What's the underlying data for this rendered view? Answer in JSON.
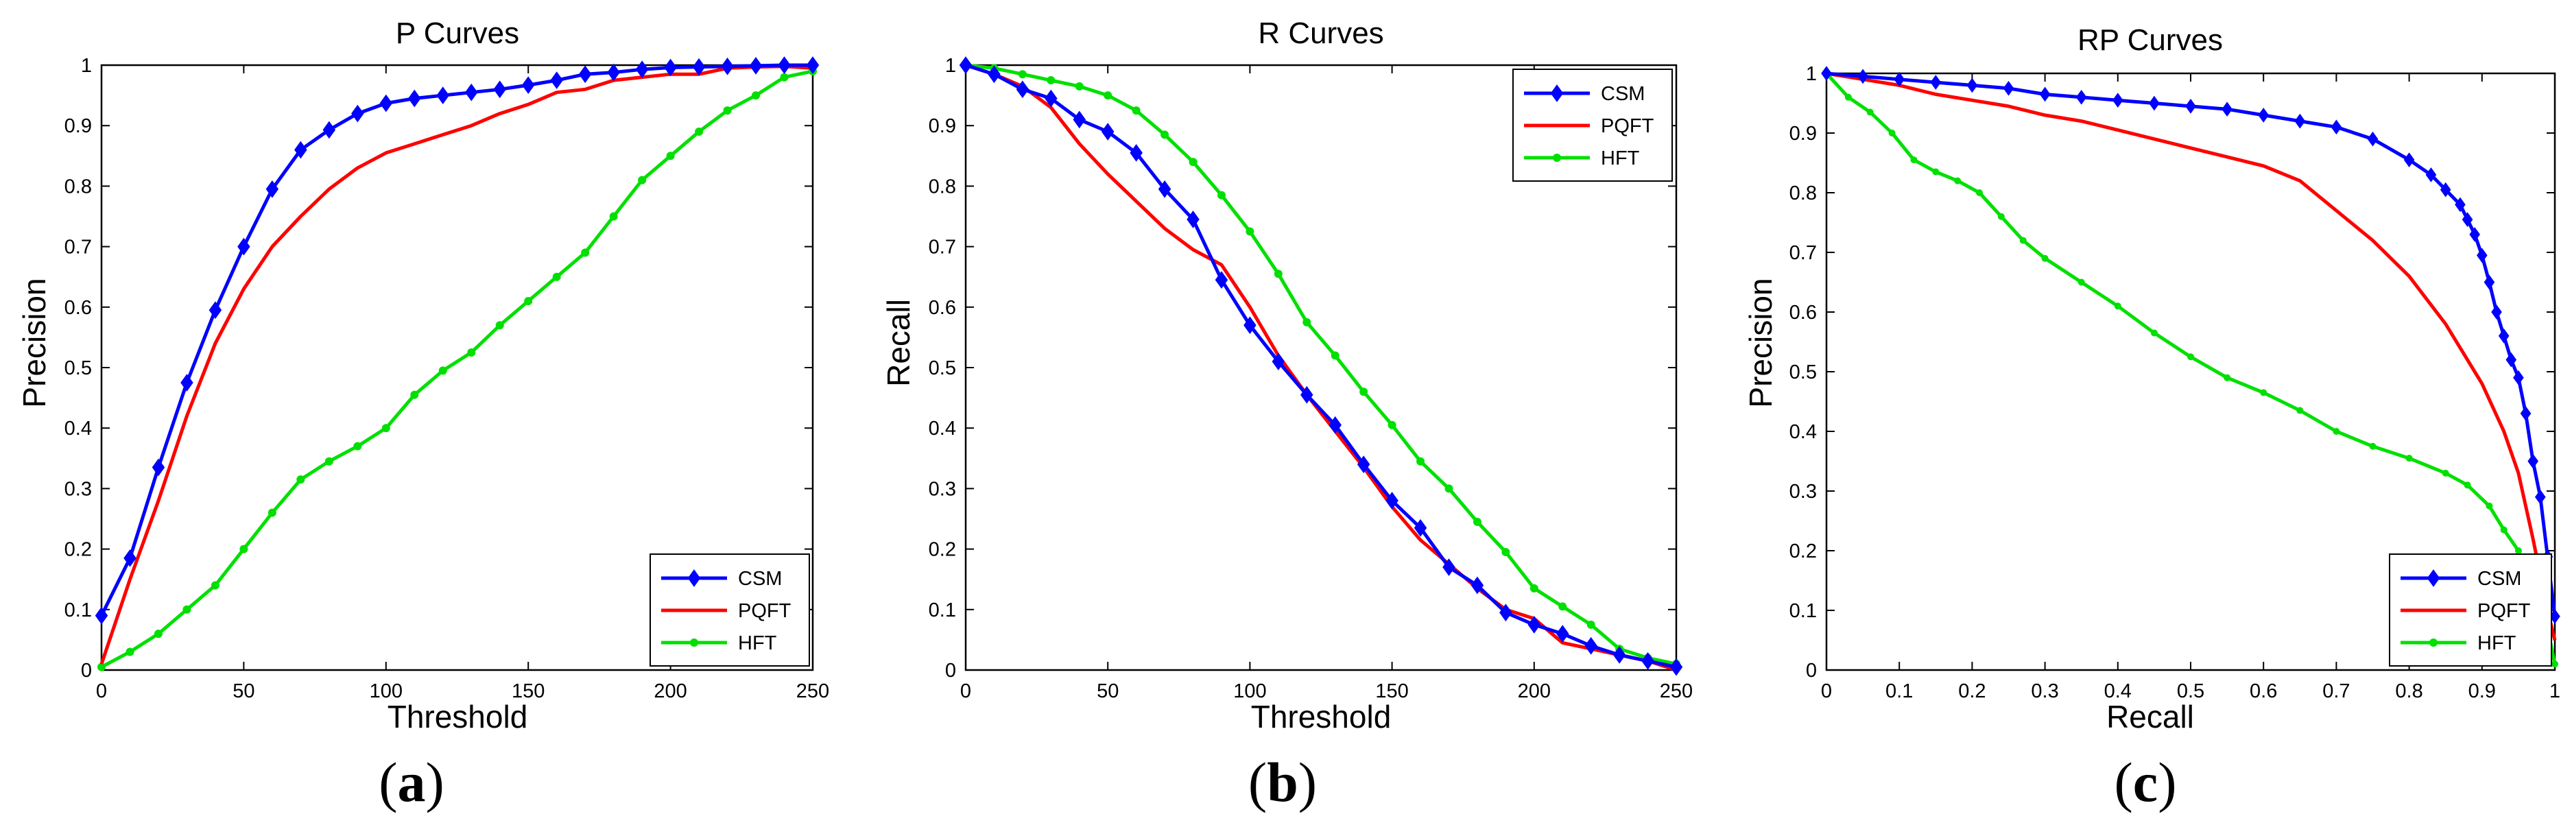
{
  "chart_data": [
    {
      "type": "line",
      "panel_label": "a",
      "title": "P Curves",
      "xlabel": "Threshold",
      "ylabel": "Precision",
      "xlim": [
        0,
        250
      ],
      "ylim": [
        0,
        1
      ],
      "xticks": [
        0,
        50,
        100,
        150,
        200,
        250
      ],
      "yticks": [
        0,
        0.1,
        0.2,
        0.3,
        0.4,
        0.5,
        0.6,
        0.7,
        0.8,
        0.9,
        1
      ],
      "grid": false,
      "legend_position": "bottom-right",
      "series": [
        {
          "name": "CSM",
          "color": "#0000ff",
          "marker": "diamond",
          "x": [
            0,
            10,
            20,
            30,
            40,
            50,
            60,
            70,
            80,
            90,
            100,
            110,
            120,
            130,
            140,
            150,
            160,
            170,
            180,
            190,
            200,
            210,
            220,
            230,
            240,
            250
          ],
          "y": [
            0.09,
            0.185,
            0.335,
            0.475,
            0.595,
            0.7,
            0.795,
            0.86,
            0.893,
            0.92,
            0.937,
            0.945,
            0.95,
            0.955,
            0.96,
            0.967,
            0.975,
            0.985,
            0.988,
            0.993,
            0.996,
            0.997,
            0.998,
            0.999,
            1.0,
            1.0
          ]
        },
        {
          "name": "PQFT",
          "color": "#ff0000",
          "marker": "none",
          "x": [
            0,
            10,
            20,
            30,
            40,
            50,
            60,
            70,
            80,
            90,
            100,
            110,
            120,
            130,
            140,
            150,
            160,
            170,
            180,
            190,
            200,
            210,
            220,
            230,
            240,
            250
          ],
          "y": [
            0.01,
            0.15,
            0.28,
            0.42,
            0.54,
            0.63,
            0.7,
            0.75,
            0.795,
            0.83,
            0.855,
            0.87,
            0.885,
            0.9,
            0.92,
            0.935,
            0.955,
            0.96,
            0.975,
            0.98,
            0.985,
            0.985,
            0.995,
            0.997,
            0.998,
            0.995
          ]
        },
        {
          "name": "HFT",
          "color": "#00e000",
          "marker": "dot",
          "x": [
            0,
            10,
            20,
            30,
            40,
            50,
            60,
            70,
            80,
            90,
            100,
            110,
            120,
            130,
            140,
            150,
            160,
            170,
            180,
            190,
            200,
            210,
            220,
            230,
            240,
            250
          ],
          "y": [
            0.005,
            0.03,
            0.06,
            0.1,
            0.14,
            0.2,
            0.26,
            0.315,
            0.345,
            0.37,
            0.4,
            0.455,
            0.495,
            0.525,
            0.57,
            0.61,
            0.65,
            0.69,
            0.75,
            0.81,
            0.85,
            0.89,
            0.925,
            0.95,
            0.98,
            0.99
          ]
        }
      ]
    },
    {
      "type": "line",
      "panel_label": "b",
      "title": "R Curves",
      "xlabel": "Threshold",
      "ylabel": "Recall",
      "xlim": [
        0,
        250
      ],
      "ylim": [
        0,
        1
      ],
      "xticks": [
        0,
        50,
        100,
        150,
        200,
        250
      ],
      "yticks": [
        0,
        0.1,
        0.2,
        0.3,
        0.4,
        0.5,
        0.6,
        0.7,
        0.8,
        0.9,
        1
      ],
      "grid": false,
      "legend_position": "top-right",
      "series": [
        {
          "name": "CSM",
          "color": "#0000ff",
          "marker": "diamond",
          "x": [
            0,
            10,
            20,
            30,
            40,
            50,
            60,
            70,
            80,
            90,
            100,
            110,
            120,
            130,
            140,
            150,
            160,
            170,
            180,
            190,
            200,
            210,
            220,
            230,
            240,
            250
          ],
          "y": [
            1.0,
            0.985,
            0.96,
            0.945,
            0.91,
            0.89,
            0.855,
            0.795,
            0.745,
            0.645,
            0.57,
            0.51,
            0.455,
            0.405,
            0.34,
            0.28,
            0.235,
            0.17,
            0.14,
            0.095,
            0.075,
            0.06,
            0.04,
            0.025,
            0.015,
            0.005
          ]
        },
        {
          "name": "PQFT",
          "color": "#ff0000",
          "marker": "none",
          "x": [
            0,
            10,
            20,
            30,
            40,
            50,
            60,
            70,
            80,
            90,
            100,
            110,
            120,
            130,
            140,
            150,
            160,
            170,
            180,
            190,
            200,
            210,
            220,
            230,
            240,
            250
          ],
          "y": [
            1.0,
            0.985,
            0.965,
            0.93,
            0.87,
            0.82,
            0.775,
            0.73,
            0.695,
            0.67,
            0.6,
            0.52,
            0.455,
            0.395,
            0.335,
            0.27,
            0.215,
            0.175,
            0.135,
            0.1,
            0.085,
            0.045,
            0.035,
            0.025,
            0.015,
            0.0
          ]
        },
        {
          "name": "HFT",
          "color": "#00e000",
          "marker": "dot",
          "x": [
            0,
            10,
            20,
            30,
            40,
            50,
            60,
            70,
            80,
            90,
            100,
            110,
            120,
            130,
            140,
            150,
            160,
            170,
            180,
            190,
            200,
            210,
            220,
            230,
            240,
            250
          ],
          "y": [
            1.0,
            0.995,
            0.985,
            0.975,
            0.965,
            0.95,
            0.925,
            0.885,
            0.84,
            0.785,
            0.725,
            0.655,
            0.575,
            0.52,
            0.46,
            0.405,
            0.345,
            0.3,
            0.245,
            0.195,
            0.135,
            0.105,
            0.075,
            0.035,
            0.02,
            0.01
          ]
        }
      ]
    },
    {
      "type": "line",
      "panel_label": "c",
      "title": "RP Curves",
      "xlabel": "Recall",
      "ylabel": "Precision",
      "xlim": [
        0,
        1
      ],
      "ylim": [
        0,
        1
      ],
      "xticks": [
        0,
        0.1,
        0.2,
        0.3,
        0.4,
        0.5,
        0.6,
        0.7,
        0.8,
        0.9,
        1
      ],
      "yticks": [
        0,
        0.1,
        0.2,
        0.3,
        0.4,
        0.5,
        0.6,
        0.7,
        0.8,
        0.9,
        1
      ],
      "grid": false,
      "legend_position": "bottom-right",
      "series": [
        {
          "name": "CSM",
          "color": "#0000ff",
          "marker": "diamond",
          "dense": true,
          "x": [
            0.0,
            0.05,
            0.1,
            0.15,
            0.2,
            0.25,
            0.3,
            0.35,
            0.4,
            0.45,
            0.5,
            0.55,
            0.6,
            0.65,
            0.7,
            0.75,
            0.8,
            0.83,
            0.85,
            0.87,
            0.88,
            0.89,
            0.9,
            0.91,
            0.92,
            0.93,
            0.94,
            0.95,
            0.96,
            0.97,
            0.98,
            0.99,
            1.0
          ],
          "y": [
            1.0,
            0.995,
            0.99,
            0.985,
            0.98,
            0.975,
            0.965,
            0.96,
            0.955,
            0.95,
            0.945,
            0.94,
            0.93,
            0.92,
            0.91,
            0.89,
            0.855,
            0.83,
            0.805,
            0.78,
            0.755,
            0.73,
            0.695,
            0.65,
            0.6,
            0.56,
            0.52,
            0.49,
            0.43,
            0.35,
            0.29,
            0.19,
            0.09
          ]
        },
        {
          "name": "PQFT",
          "color": "#ff0000",
          "marker": "none",
          "x": [
            0.0,
            0.05,
            0.1,
            0.15,
            0.2,
            0.25,
            0.3,
            0.35,
            0.4,
            0.45,
            0.5,
            0.55,
            0.6,
            0.65,
            0.7,
            0.75,
            0.8,
            0.85,
            0.9,
            0.93,
            0.95,
            0.97,
            0.99,
            1.0
          ],
          "y": [
            1.0,
            0.99,
            0.98,
            0.965,
            0.955,
            0.945,
            0.93,
            0.92,
            0.905,
            0.89,
            0.875,
            0.86,
            0.845,
            0.82,
            0.77,
            0.72,
            0.66,
            0.58,
            0.48,
            0.4,
            0.33,
            0.22,
            0.1,
            0.05
          ]
        },
        {
          "name": "HFT",
          "color": "#00e000",
          "marker": "dot",
          "dense": true,
          "x": [
            0.0,
            0.03,
            0.06,
            0.09,
            0.12,
            0.15,
            0.18,
            0.21,
            0.24,
            0.27,
            0.3,
            0.35,
            0.4,
            0.45,
            0.5,
            0.55,
            0.6,
            0.65,
            0.7,
            0.75,
            0.8,
            0.85,
            0.88,
            0.91,
            0.93,
            0.95,
            0.97,
            0.99,
            1.0
          ],
          "y": [
            1.0,
            0.96,
            0.935,
            0.9,
            0.855,
            0.835,
            0.82,
            0.8,
            0.76,
            0.72,
            0.69,
            0.65,
            0.61,
            0.565,
            0.525,
            0.49,
            0.465,
            0.435,
            0.4,
            0.375,
            0.355,
            0.33,
            0.31,
            0.275,
            0.235,
            0.2,
            0.13,
            0.07,
            0.01
          ]
        }
      ]
    }
  ]
}
